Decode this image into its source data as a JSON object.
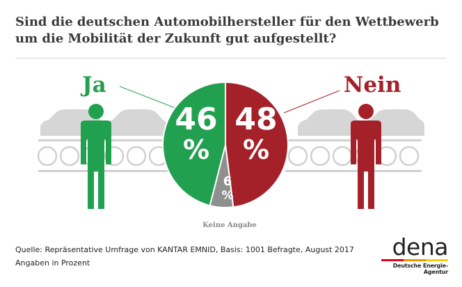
{
  "title_line1": "Sind die deutschen Automobilhersteller für den Wettbewerb",
  "title_line2": "um die Mobilität der Zukunft gut aufgestellt?",
  "chart_data": {
    "type": "pie",
    "title": "Sind die deutschen Automobilhersteller für den Wettbewerb um die Mobilität der Zukunft gut aufgestellt?",
    "unit": "%",
    "slices": [
      {
        "label": "Ja",
        "value": 46,
        "color": "#21a04f"
      },
      {
        "label": "Nein",
        "value": 48,
        "color": "#a5212a"
      },
      {
        "label": "Keine Angabe",
        "value": 6,
        "color": "#8f8f8f"
      }
    ]
  },
  "labels": {
    "ja": "Ja",
    "nein": "Nein",
    "keine_angabe": "Keine Angabe"
  },
  "source": "Quelle: Repräsentative Umfrage von KANTAR EMNID, Basis: 1001 Befragte, August 2017",
  "note": "Angaben in Prozent",
  "logo": {
    "word": "dena",
    "subtitle": "Deutsche Energie-Agentur",
    "bar_colors": [
      "#e2001a",
      "#f39200",
      "#ffcc00"
    ]
  },
  "icons": [
    "person-icon",
    "car-icon",
    "conveyor-icon"
  ]
}
